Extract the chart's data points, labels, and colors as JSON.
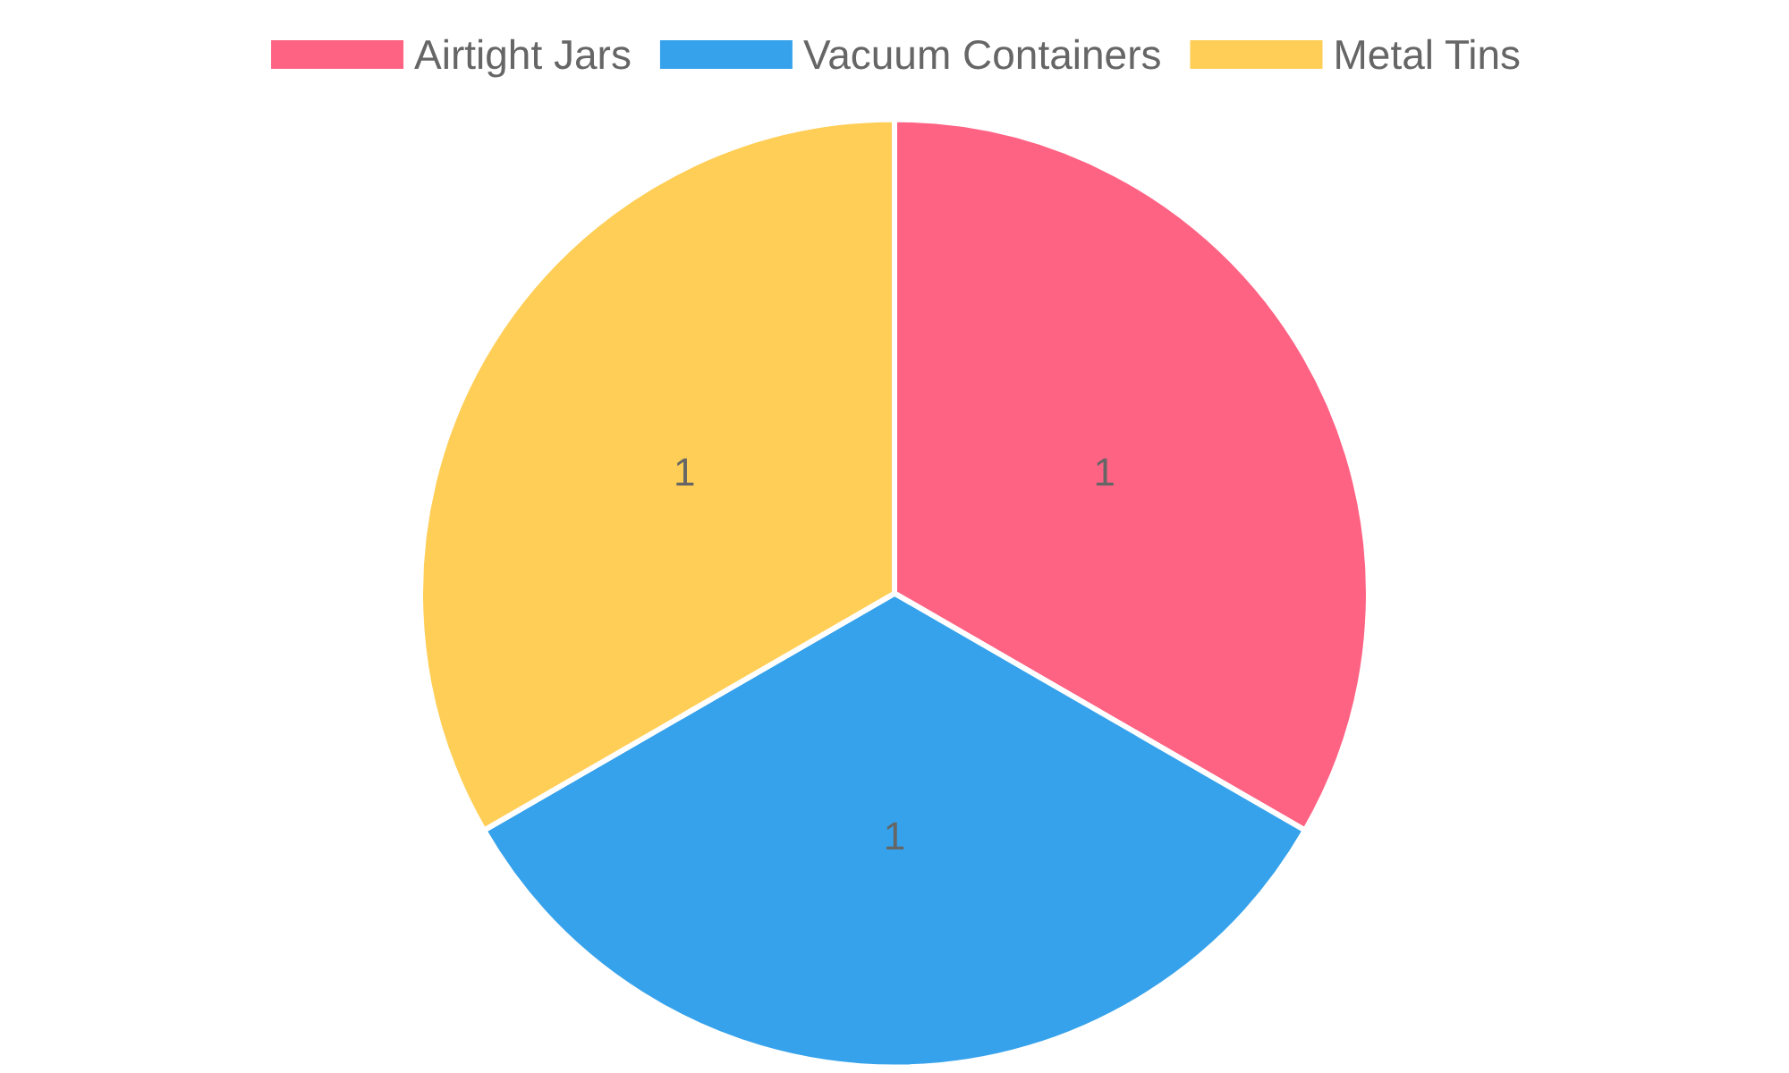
{
  "chart_data": {
    "type": "pie",
    "categories": [
      "Airtight Jars",
      "Vacuum Containers",
      "Metal Tins"
    ],
    "values": [
      1,
      1,
      1
    ],
    "colors": [
      "#ff6384",
      "#36a2eb",
      "#ffce56"
    ],
    "data_labels": true,
    "legend": "top"
  }
}
